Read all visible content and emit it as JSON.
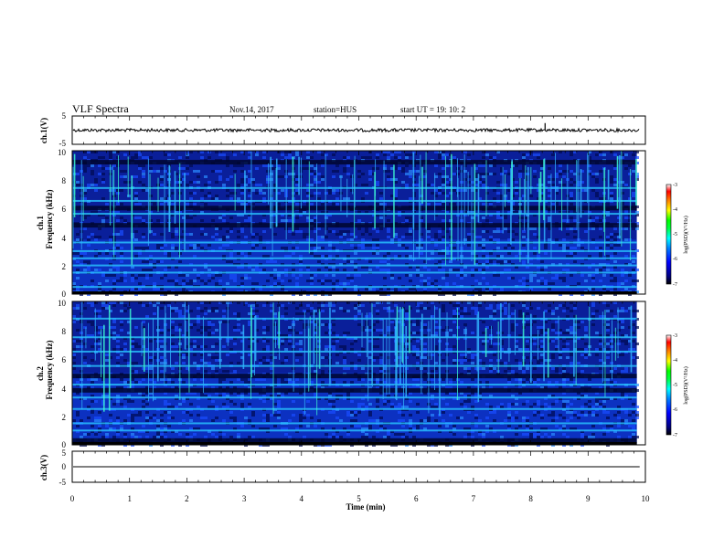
{
  "header": {
    "title": "VLF Spectra",
    "date": "Nov.14, 2017",
    "station": "station=HUS",
    "start_ut": "start UT =  19: 10: 2"
  },
  "colors": {
    "background": "#ffffff",
    "axis": "#000000",
    "colormap": [
      "#000000",
      "#000080",
      "#0000ff",
      "#0080ff",
      "#00ffff",
      "#00ff80",
      "#00ff00",
      "#ffff00",
      "#ff8000",
      "#ff0000",
      "#ffffff"
    ]
  },
  "chart_data": [
    {
      "type": "line",
      "name": "ch1-waveform",
      "ylabel": "ch.1(V)",
      "ylim": [
        -5,
        5
      ],
      "yticks": [
        "5",
        "-5"
      ],
      "x_range": [
        0,
        10
      ],
      "baseline": 0,
      "spikes": [
        {
          "x": 8.25,
          "y": 2.5
        }
      ]
    },
    {
      "type": "heatmap",
      "name": "ch1-spectrogram",
      "ylabel": "ch.1\nFrequency (kHz)",
      "ylabel_lines": [
        "ch.1",
        "Frequency (kHz)"
      ],
      "ylim": [
        0,
        10
      ],
      "yticks": [
        "0",
        "2",
        "4",
        "6",
        "8",
        "10"
      ],
      "colorbar": {
        "label": "log(PSD)(V²/Hz)",
        "range": [
          -7,
          -3
        ],
        "ticks": [
          "-3",
          "-4",
          "-5",
          "-6",
          "-7"
        ]
      },
      "data_extent_min": 9.85,
      "bright_bands_khz": [
        0.5,
        1.5,
        2.0,
        2.5,
        3.0,
        3.6,
        5.6,
        6.5,
        7.4
      ],
      "dark_bands_khz": [
        4.8,
        6.0,
        9.2
      ],
      "noise_boundary_khz": 3.8
    },
    {
      "type": "heatmap",
      "name": "ch2-spectrogram",
      "ylabel": "ch.2\nFrequency (kHz)",
      "ylabel_lines": [
        "ch.2",
        "Frequency (kHz)"
      ],
      "ylim": [
        0,
        10
      ],
      "yticks": [
        "0",
        "2",
        "4",
        "6",
        "8",
        "10"
      ],
      "colorbar": {
        "label": "log(PSD)(V²/Hz)",
        "range": [
          -7,
          -3
        ],
        "ticks": [
          "-3",
          "-4",
          "-5",
          "-6",
          "-7"
        ]
      },
      "data_extent_min": 9.85,
      "bright_bands_khz": [
        1.0,
        1.5,
        2.5,
        3.3,
        4.2,
        5.5,
        6.5,
        7.5,
        8.8
      ],
      "dark_bands_khz": [
        0.3,
        3.8,
        4.8
      ],
      "noise_boundary_khz": 5.0
    },
    {
      "type": "line",
      "name": "ch3-waveform",
      "ylabel": "ch.3(V)",
      "ylim": [
        -5,
        5
      ],
      "yticks": [
        "5",
        "0",
        "-5"
      ],
      "x_range": [
        0,
        10
      ],
      "baseline": 0
    }
  ],
  "x_axis": {
    "label": "Time (min)",
    "ticks": [
      "0",
      "1",
      "2",
      "3",
      "4",
      "5",
      "6",
      "7",
      "8",
      "9",
      "10"
    ],
    "range": [
      0,
      10
    ]
  }
}
